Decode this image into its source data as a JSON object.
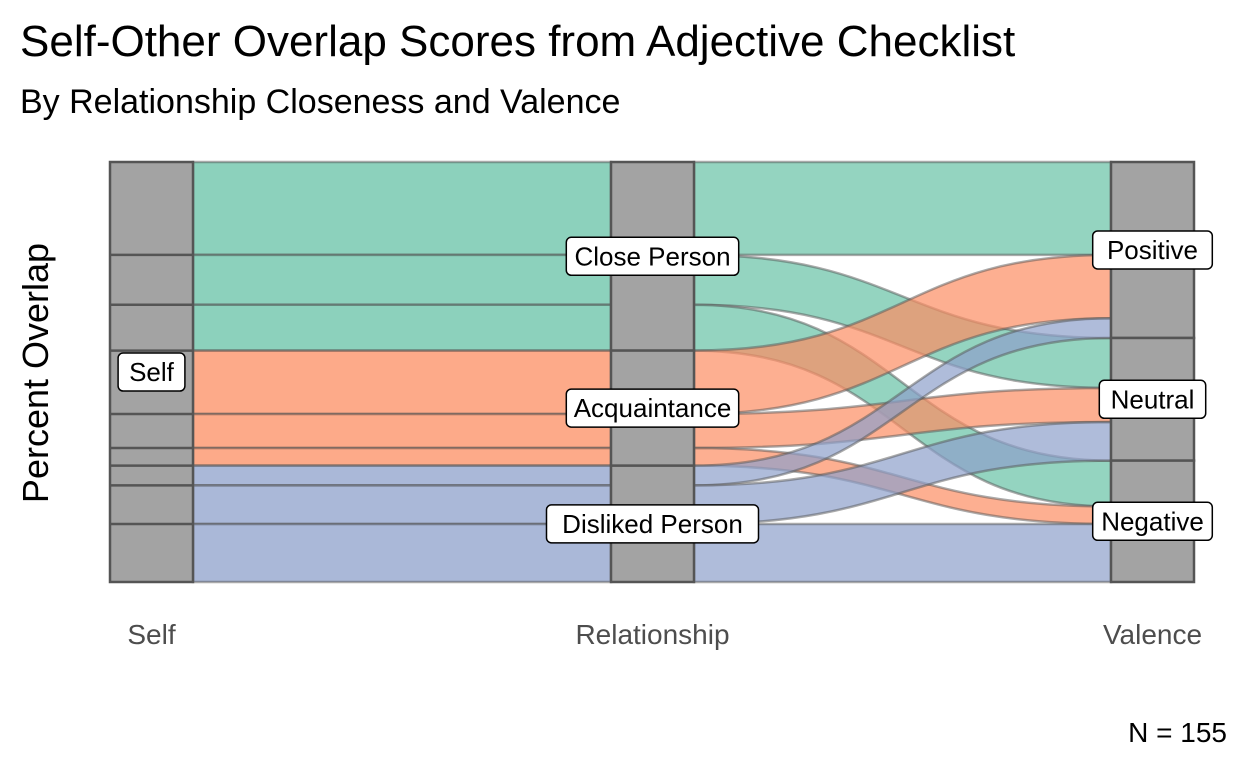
{
  "chart_data": {
    "type": "alluvial",
    "title": "Self-Other Overlap Scores from Adjective Checklist",
    "subtitle": "By Relationship Closeness and Valence",
    "ylabel": "Percent Overlap",
    "caption": "N = 155",
    "axes": [
      "Self",
      "Relationship",
      "Valence"
    ],
    "strata": {
      "Self": [
        "Self"
      ],
      "Relationship": [
        "Close Person",
        "Acquaintance",
        "Disliked Person"
      ],
      "Valence": [
        "Positive",
        "Neutral",
        "Negative"
      ]
    },
    "flows": [
      {
        "relationship": "Close Person",
        "valence": "Positive",
        "value": 22.1
      },
      {
        "relationship": "Close Person",
        "valence": "Neutral",
        "value": 11.9
      },
      {
        "relationship": "Close Person",
        "valence": "Negative",
        "value": 10.9
      },
      {
        "relationship": "Acquaintance",
        "valence": "Positive",
        "value": 15.1
      },
      {
        "relationship": "Acquaintance",
        "valence": "Neutral",
        "value": 8.1
      },
      {
        "relationship": "Acquaintance",
        "valence": "Negative",
        "value": 4.2
      },
      {
        "relationship": "Disliked Person",
        "valence": "Positive",
        "value": 4.7
      },
      {
        "relationship": "Disliked Person",
        "valence": "Neutral",
        "value": 9.2
      },
      {
        "relationship": "Disliked Person",
        "valence": "Negative",
        "value": 13.8
      }
    ],
    "colors": {
      "Close Person": "#66C2A5",
      "Acquaintance": "#FC8D62",
      "Disliked Person": "#8DA0CB",
      "stratum_fill": "#A3A3A3",
      "stratum_border": "#555555"
    },
    "grid": false,
    "legend": "none"
  }
}
